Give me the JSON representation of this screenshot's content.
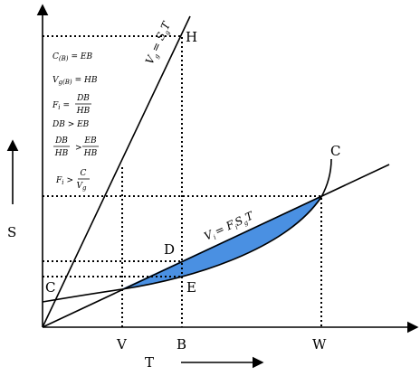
{
  "axes": {
    "y_label": "S",
    "x_label": "T"
  },
  "points": {
    "H": "H",
    "C_top": "C",
    "C_left": "C",
    "D": "D",
    "E": "E"
  },
  "x_marks": [
    "V",
    "B",
    "W"
  ],
  "line_g": {
    "lhs": "V",
    "lhs_sub": "g",
    "rhs": "= S",
    "rhs_sub": "g",
    "tail": "T"
  },
  "line_i": {
    "lhs": "V",
    "lhs_sub": "i",
    "rhs": "= F",
    "rhs_sub": "i",
    "mid": "S",
    "mid_sub": "g",
    "tail": "T"
  },
  "notes": [
    {
      "lhs": "C",
      "lhs_sub": "(B)",
      "rhs": "= EB"
    },
    {
      "lhs": "V",
      "lhs_sub": "g(B)",
      "rhs": "= HB"
    },
    {
      "lhs": "F",
      "lhs_sub": "i",
      "op": "=",
      "num": "DB",
      "den": "HB"
    },
    {
      "text": "DB > EB"
    },
    {
      "num1": "DB",
      "den1": "HB",
      "op": ">",
      "num2": "EB",
      "den2": "HB"
    },
    {
      "lhs": "F",
      "lhs_sub": "i",
      "op": ">",
      "num": "C",
      "den": "V",
      "den_sub": "g"
    }
  ]
}
